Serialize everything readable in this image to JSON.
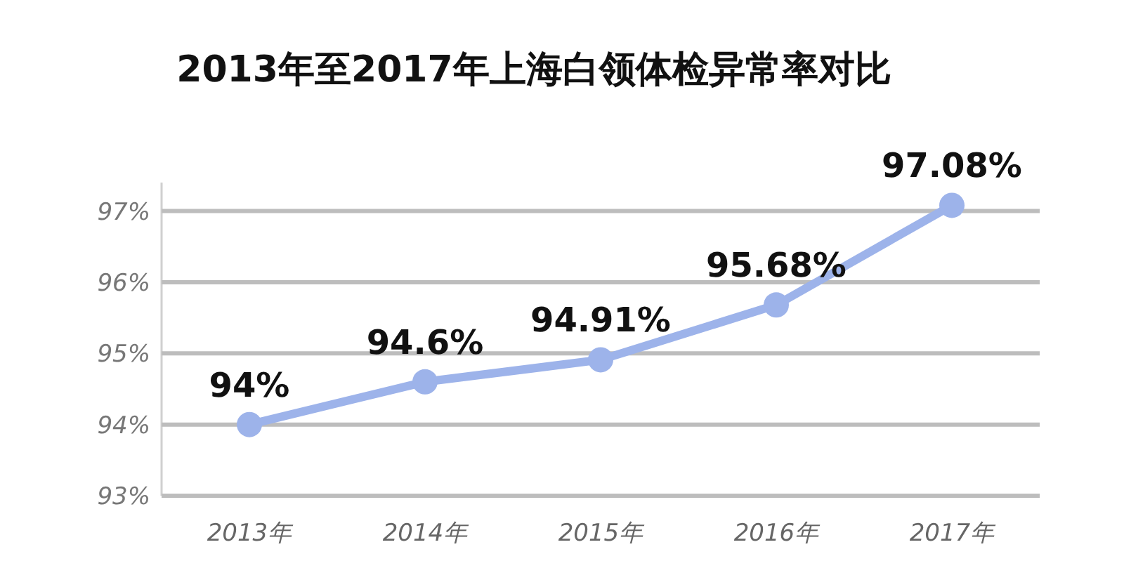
{
  "chart_data": {
    "type": "line",
    "title": "2013年至2017年上海白领体检异常率对比",
    "categories": [
      "2013年",
      "2014年",
      "2015年",
      "2016年",
      "2017年"
    ],
    "series": [
      {
        "color": "#9db3ea",
        "values": [
          94,
          94.6,
          94.91,
          95.68,
          97.08
        ],
        "value_labels": [
          "94%",
          "94.6%",
          "94.91%",
          "95.68%",
          "97.08%"
        ]
      }
    ],
    "ylim": [
      93,
      97.4
    ],
    "yticks": [
      {
        "value": 93,
        "label": "93%"
      },
      {
        "value": 94,
        "label": "94%"
      },
      {
        "value": 95,
        "label": "95%"
      },
      {
        "value": 96,
        "label": "96%"
      },
      {
        "value": 97,
        "label": "97%"
      }
    ],
    "grid": "y",
    "marker": "circle",
    "line_style": "solid"
  }
}
